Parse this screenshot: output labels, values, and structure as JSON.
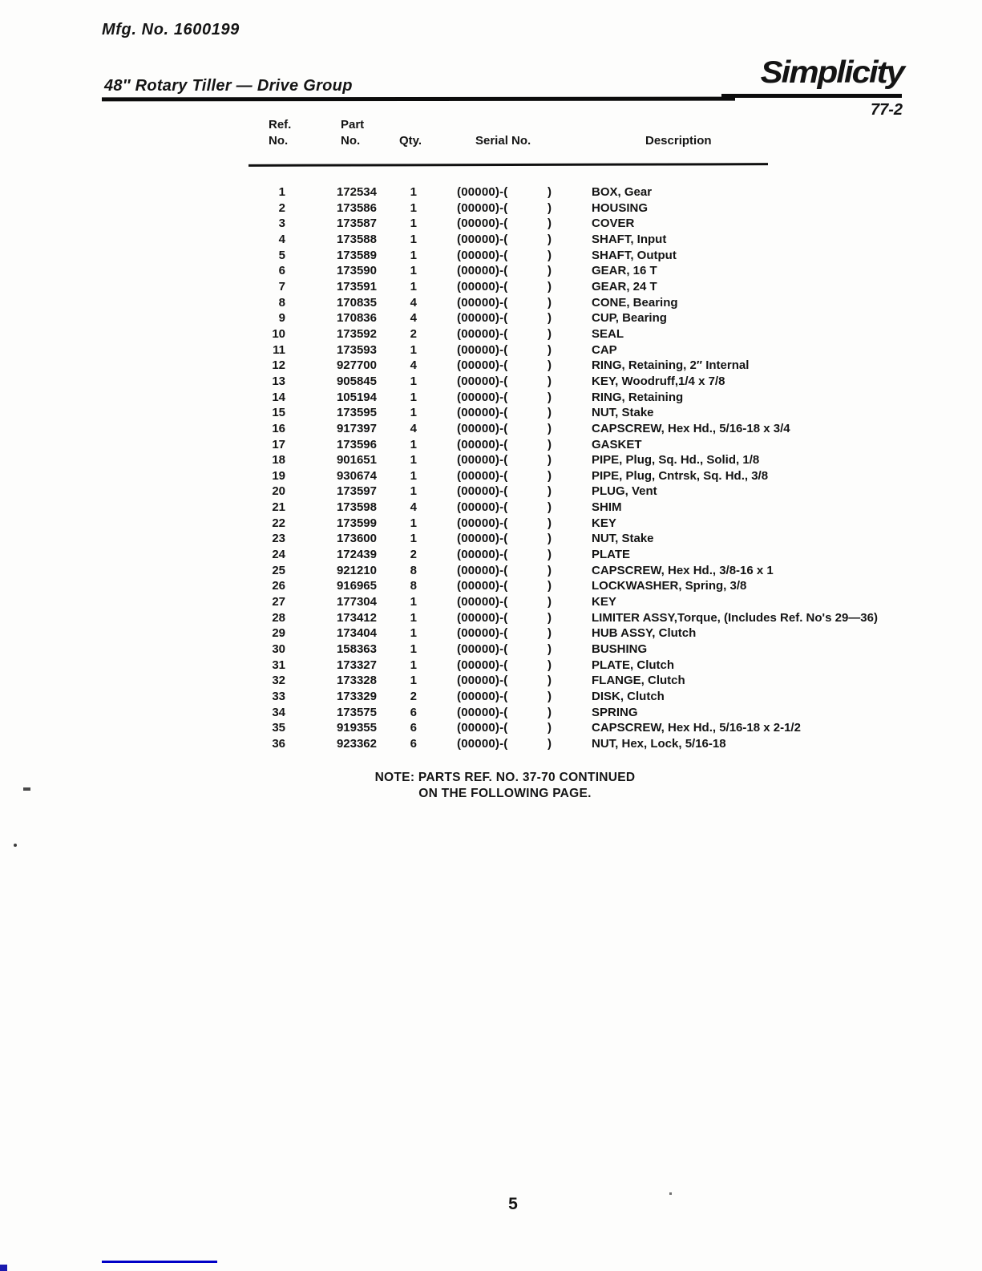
{
  "page": {
    "mfg_no": "Mfg. No. 1600199",
    "title": "48″ Rotary Tiller — Drive Group",
    "brand": "Simplicity",
    "page_ref": "77-2",
    "page_number": "5",
    "note": "NOTE:  PARTS REF. NO. 37-70 CONTINUED\nON THE FOLLOWING PAGE.",
    "accent_blue": "#0000c6"
  },
  "table": {
    "headers": {
      "ref": "Ref.\nNo.",
      "part": "Part\nNo.",
      "qty": "Qty.",
      "serial": "Serial No.",
      "description": "Description"
    },
    "serial_format": {
      "left": "(00000)-(",
      "right": ")"
    },
    "rows": [
      {
        "ref": "1",
        "part": "172534",
        "qty": "1",
        "desc": "BOX, Gear"
      },
      {
        "ref": "2",
        "part": "173586",
        "qty": "1",
        "desc": "HOUSING"
      },
      {
        "ref": "3",
        "part": "173587",
        "qty": "1",
        "desc": "COVER"
      },
      {
        "ref": "4",
        "part": "173588",
        "qty": "1",
        "desc": "SHAFT, Input"
      },
      {
        "ref": "5",
        "part": "173589",
        "qty": "1",
        "desc": "SHAFT, Output"
      },
      {
        "ref": "6",
        "part": "173590",
        "qty": "1",
        "desc": "GEAR, 16 T"
      },
      {
        "ref": "7",
        "part": "173591",
        "qty": "1",
        "desc": "GEAR, 24 T"
      },
      {
        "ref": "8",
        "part": "170835",
        "qty": "4",
        "desc": "CONE, Bearing"
      },
      {
        "ref": "9",
        "part": "170836",
        "qty": "4",
        "desc": "CUP, Bearing"
      },
      {
        "ref": "10",
        "part": "173592",
        "qty": "2",
        "desc": "SEAL"
      },
      {
        "ref": "11",
        "part": "173593",
        "qty": "1",
        "desc": "CAP"
      },
      {
        "ref": "12",
        "part": "927700",
        "qty": "4",
        "desc": "RING, Retaining, 2″ Internal"
      },
      {
        "ref": "13",
        "part": "905845",
        "qty": "1",
        "desc": "KEY, Woodruff,1/4 x 7/8"
      },
      {
        "ref": "14",
        "part": "105194",
        "qty": "1",
        "desc": "RING, Retaining"
      },
      {
        "ref": "15",
        "part": "173595",
        "qty": "1",
        "desc": "NUT, Stake"
      },
      {
        "ref": "16",
        "part": "917397",
        "qty": "4",
        "desc": "CAPSCREW, Hex Hd.,  5/16-18 x 3/4"
      },
      {
        "ref": "17",
        "part": "173596",
        "qty": "1",
        "desc": "GASKET"
      },
      {
        "ref": "18",
        "part": "901651",
        "qty": "1",
        "desc": "PIPE, Plug, Sq. Hd., Solid, 1/8"
      },
      {
        "ref": "19",
        "part": "930674",
        "qty": "1",
        "desc": "PIPE, Plug, Cntrsk, Sq. Hd., 3/8"
      },
      {
        "ref": "20",
        "part": "173597",
        "qty": "1",
        "desc": "PLUG, Vent"
      },
      {
        "ref": "21",
        "part": "173598",
        "qty": "4",
        "desc": "SHIM"
      },
      {
        "ref": "22",
        "part": "173599",
        "qty": "1",
        "desc": "KEY"
      },
      {
        "ref": "23",
        "part": "173600",
        "qty": "1",
        "desc": "NUT, Stake"
      },
      {
        "ref": "24",
        "part": "172439",
        "qty": "2",
        "desc": "PLATE"
      },
      {
        "ref": "25",
        "part": "921210",
        "qty": "8",
        "desc": "CAPSCREW, Hex Hd., 3/8-16 x 1"
      },
      {
        "ref": "26",
        "part": "916965",
        "qty": "8",
        "desc": "LOCKWASHER, Spring, 3/8"
      },
      {
        "ref": "27",
        "part": "177304",
        "qty": "1",
        "desc": "KEY"
      },
      {
        "ref": "28",
        "part": "173412",
        "qty": "1",
        "desc": "LIMITER ASSY,Torque, (Includes Ref. No's 29—36)"
      },
      {
        "ref": "29",
        "part": "173404",
        "qty": "1",
        "desc": "HUB ASSY, Clutch"
      },
      {
        "ref": "30",
        "part": "158363",
        "qty": "1",
        "desc": "BUSHING"
      },
      {
        "ref": "31",
        "part": "173327",
        "qty": "1",
        "desc": "PLATE, Clutch"
      },
      {
        "ref": "32",
        "part": "173328",
        "qty": "1",
        "desc": "FLANGE, Clutch"
      },
      {
        "ref": "33",
        "part": "173329",
        "qty": "2",
        "desc": "DISK, Clutch"
      },
      {
        "ref": "34",
        "part": "173575",
        "qty": "6",
        "desc": "SPRING"
      },
      {
        "ref": "35",
        "part": "919355",
        "qty": "6",
        "desc": "CAPSCREW, Hex Hd., 5/16-18 x 2-1/2"
      },
      {
        "ref": "36",
        "part": "923362",
        "qty": "6",
        "desc": "NUT, Hex, Lock, 5/16-18"
      }
    ]
  }
}
